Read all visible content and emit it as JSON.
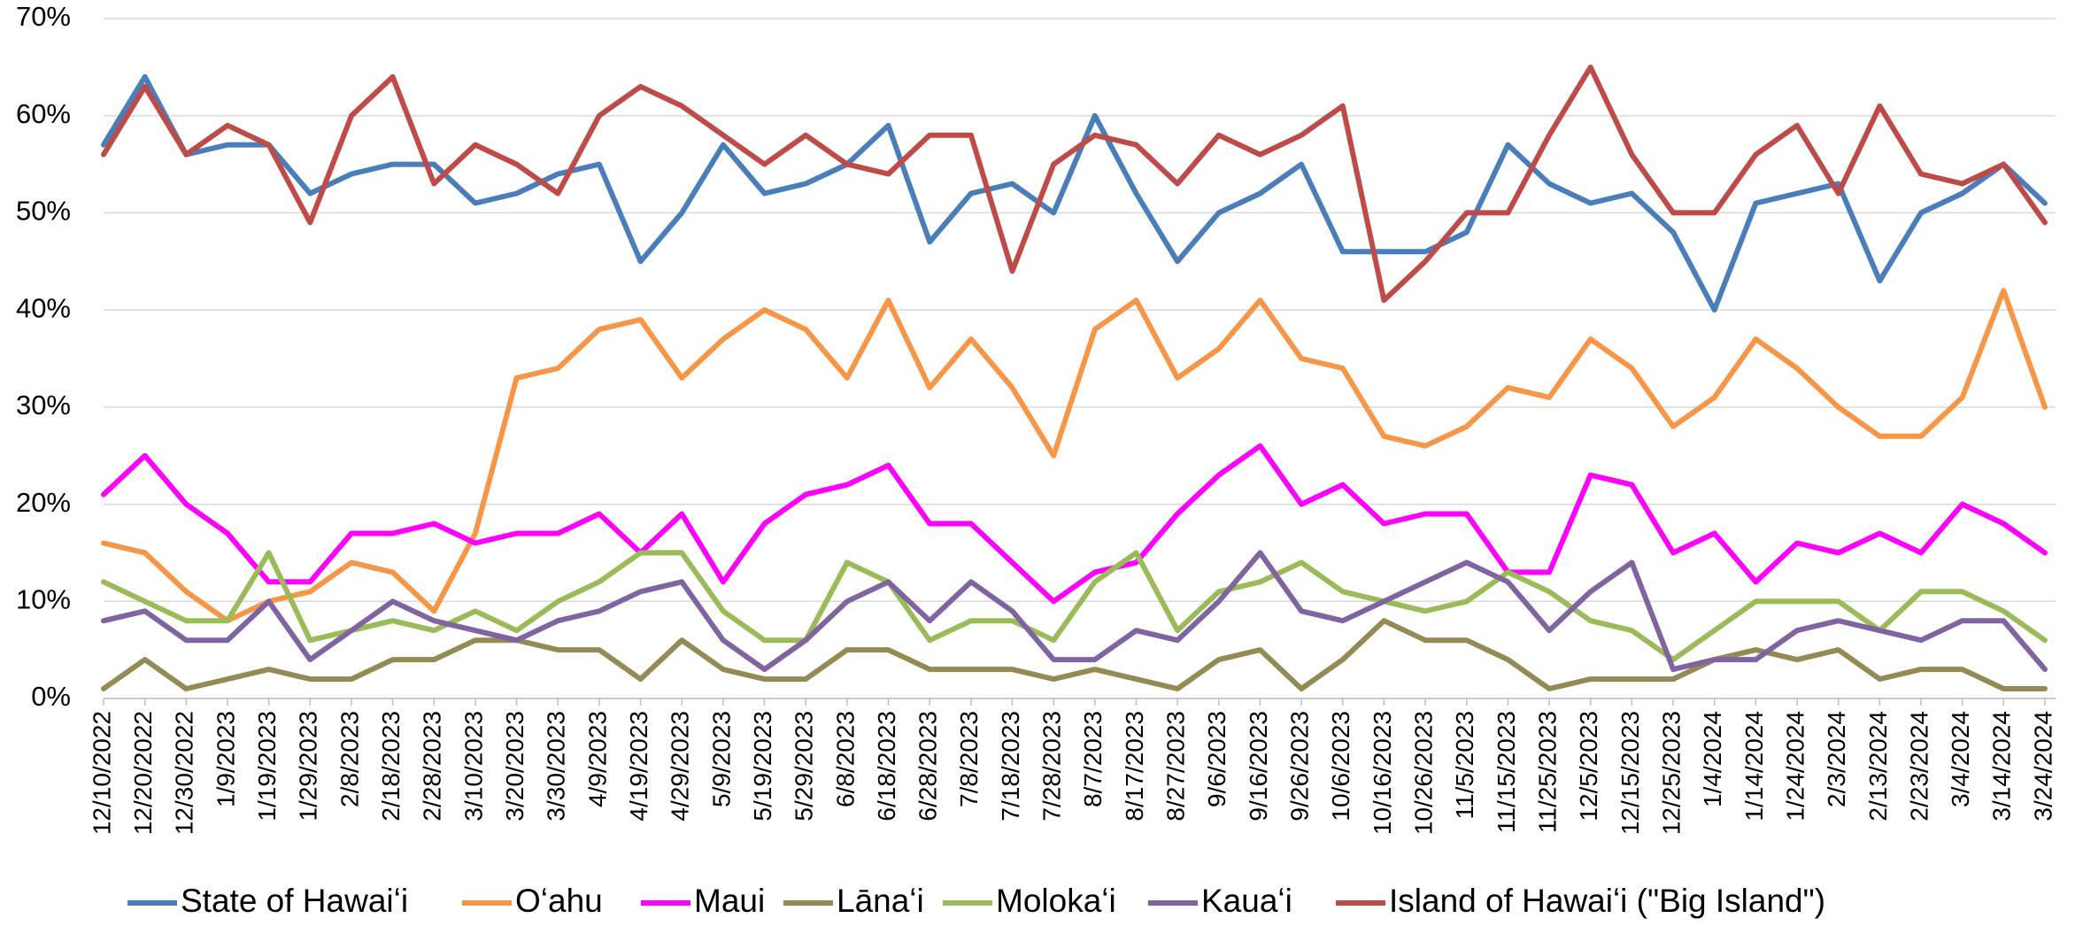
{
  "chart_data": {
    "type": "line",
    "categories": [
      "12/10/2022",
      "12/20/2022",
      "12/30/2022",
      "1/9/2023",
      "1/19/2023",
      "1/29/2023",
      "2/8/2023",
      "2/18/2023",
      "2/28/2023",
      "3/10/2023",
      "3/20/2023",
      "3/30/2023",
      "4/9/2023",
      "4/19/2023",
      "4/29/2023",
      "5/9/2023",
      "5/19/2023",
      "5/29/2023",
      "6/8/2023",
      "6/18/2023",
      "6/28/2023",
      "7/8/2023",
      "7/18/2023",
      "7/28/2023",
      "8/7/2023",
      "8/17/2023",
      "8/27/2023",
      "9/6/2023",
      "9/16/2023",
      "9/26/2023",
      "10/6/2023",
      "10/16/2023",
      "10/26/2023",
      "11/5/2023",
      "11/15/2023",
      "11/25/2023",
      "12/5/2023",
      "12/15/2023",
      "12/25/2023",
      "1/4/2024",
      "1/14/2024",
      "1/24/2024",
      "2/3/2024",
      "2/13/2024",
      "2/23/2024",
      "3/4/2024",
      "3/14/2024",
      "3/24/2024"
    ],
    "series": [
      {
        "name": "State of Hawaiʻi",
        "color": "#4a7ebb",
        "values": [
          57,
          64,
          56,
          57,
          57,
          52,
          54,
          55,
          55,
          51,
          52,
          54,
          55,
          45,
          50,
          57,
          52,
          53,
          55,
          59,
          47,
          52,
          53,
          50,
          60,
          52,
          45,
          50,
          52,
          55,
          46,
          46,
          46,
          48,
          57,
          53,
          51,
          52,
          48,
          40,
          51,
          52,
          53,
          43,
          50,
          52,
          55,
          51
        ]
      },
      {
        "name": "Oʻahu",
        "color": "#f79646",
        "values": [
          16,
          15,
          11,
          8,
          10,
          11,
          14,
          13,
          9,
          17,
          33,
          34,
          38,
          39,
          33,
          37,
          40,
          38,
          33,
          41,
          32,
          37,
          32,
          25,
          38,
          41,
          33,
          36,
          41,
          35,
          34,
          27,
          26,
          28,
          32,
          31,
          37,
          34,
          28,
          31,
          37,
          34,
          30,
          27,
          27,
          31,
          42,
          30
        ]
      },
      {
        "name": "Maui",
        "color": "#ff00ff",
        "values": [
          21,
          25,
          20,
          17,
          12,
          12,
          17,
          17,
          18,
          16,
          17,
          17,
          19,
          15,
          19,
          12,
          18,
          21,
          22,
          24,
          18,
          18,
          14,
          10,
          13,
          14,
          19,
          23,
          26,
          20,
          22,
          18,
          19,
          19,
          13,
          13,
          23,
          22,
          15,
          17,
          12,
          16,
          15,
          17,
          15,
          20,
          18,
          15
        ]
      },
      {
        "name": "Lānaʻi",
        "color": "#948a54",
        "values": [
          1,
          4,
          1,
          2,
          3,
          2,
          2,
          4,
          4,
          6,
          6,
          5,
          5,
          2,
          6,
          3,
          2,
          2,
          5,
          5,
          3,
          3,
          3,
          2,
          3,
          2,
          1,
          4,
          5,
          1,
          4,
          8,
          6,
          6,
          4,
          1,
          2,
          2,
          2,
          4,
          5,
          4,
          5,
          2,
          3,
          3,
          1,
          1
        ]
      },
      {
        "name": "Molokaʻi",
        "color": "#9bbb59",
        "values": [
          12,
          10,
          8,
          8,
          15,
          6,
          7,
          8,
          7,
          9,
          7,
          10,
          12,
          15,
          15,
          9,
          6,
          6,
          14,
          12,
          6,
          8,
          8,
          6,
          12,
          15,
          7,
          11,
          12,
          14,
          11,
          10,
          9,
          10,
          13,
          11,
          8,
          7,
          4,
          7,
          10,
          10,
          10,
          7,
          11,
          11,
          9,
          6
        ]
      },
      {
        "name": "Kauaʻi",
        "color": "#8064a2",
        "values": [
          8,
          9,
          6,
          6,
          10,
          4,
          7,
          10,
          8,
          7,
          6,
          8,
          9,
          11,
          12,
          6,
          3,
          6,
          10,
          12,
          8,
          12,
          9,
          4,
          4,
          7,
          6,
          10,
          15,
          9,
          8,
          10,
          12,
          14,
          12,
          7,
          11,
          14,
          3,
          4,
          4,
          7,
          8,
          7,
          6,
          8,
          8,
          3
        ]
      },
      {
        "name": "Island of Hawaiʻi (\"Big Island\")",
        "color": "#be4b48",
        "values": [
          56,
          63,
          56,
          59,
          57,
          49,
          60,
          64,
          53,
          57,
          55,
          52,
          60,
          63,
          61,
          58,
          55,
          58,
          55,
          54,
          58,
          58,
          44,
          55,
          58,
          57,
          53,
          58,
          56,
          58,
          61,
          41,
          45,
          50,
          50,
          58,
          65,
          56,
          50,
          50,
          56,
          59,
          52,
          61,
          54,
          53,
          55,
          49
        ]
      }
    ],
    "ylim": [
      0,
      70
    ],
    "yticks": [
      {
        "value": 0,
        "label": "0%"
      },
      {
        "value": 10,
        "label": "10%"
      },
      {
        "value": 20,
        "label": "20%"
      },
      {
        "value": 30,
        "label": "30%"
      },
      {
        "value": 40,
        "label": "40%"
      },
      {
        "value": 50,
        "label": "50%"
      },
      {
        "value": 60,
        "label": "60%"
      },
      {
        "value": 70,
        "label": "70%"
      }
    ],
    "grid": true,
    "legend": "bottom"
  }
}
